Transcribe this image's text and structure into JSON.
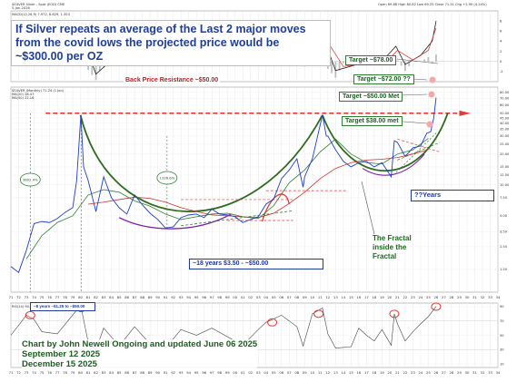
{
  "header": {
    "ticker_line": "$SILVER Silver - Spot (EOD) CME",
    "date_line": "5-Jan-2026",
    "ohlc_line": "Open 69.88 High 80.82 Low 69.25 Close 71.31 Chg +2.90 (4.24%)",
    "macd_line": "MACD(12,26,9) 7.972, 6.629, 1.353",
    "ma_line_1": "$SILVER (Monthly) 71.24 (1 Jan)",
    "ma_line_2": "MA(20) 28.47",
    "ma_line_3": "MA(50) 22.16",
    "rsi_line": "RSI(14) 90.30"
  },
  "annotations": {
    "main_title": "If Silver repeats an average of the Last 2 major moves from the covid lows the projected price would be ~$300.00 per OZ",
    "resistance": "Back Price Resistance ~$50.00",
    "target_78": "Target ~$78.00",
    "target_72": "Target ~$72.00 ??",
    "target_50": "Target ~$50.00 Met",
    "target_38": "Target $38.00 met",
    "years_q": "??Years",
    "years_18": "~18 years $3.50 - ~$50.00",
    "years_8": "~8 years ~$1.25 to ~$50.00",
    "fractal": "The Fractal inside the Fractal",
    "pct_1": "3802.4%",
    "pct_2": "1326.6%",
    "credit_1": "Chart by John Newell Ongoing and updated  June 06 2025",
    "credit_2": "September 12 2025",
    "credit_3": "December 15 2025"
  },
  "colors": {
    "price": "#1f3fc7",
    "ma_short": "#2e7d32",
    "ma_long": "#d32f2f",
    "cup": "#2f6b1f",
    "resistance": "#e53935",
    "annotation_blue": "#1e3a9a",
    "annotation_green": "#1b5e20"
  },
  "chart_data": {
    "type": "line",
    "title": "$SILVER Silver - Spot (EOD) CME",
    "y_scale": "log",
    "ylim": [
      0.9,
      90
    ],
    "xlim": [
      1971,
      2034
    ],
    "x_tick_labels": [
      "71",
      "72",
      "73",
      "74",
      "75",
      "76",
      "77",
      "78",
      "79",
      "80",
      "81",
      "82",
      "83",
      "84",
      "85",
      "86",
      "87",
      "88",
      "89",
      "90",
      "91",
      "92",
      "93",
      "94",
      "95",
      "96",
      "97",
      "98",
      "99",
      "00",
      "01",
      "02",
      "03",
      "04",
      "05",
      "06",
      "07",
      "08",
      "09",
      "10",
      "11",
      "12",
      "13",
      "14",
      "15",
      "16",
      "17",
      "18",
      "19",
      "20",
      "21",
      "22",
      "23",
      "24",
      "25",
      "26",
      "27",
      "28",
      "29",
      "30",
      "31",
      "32",
      "33",
      "34"
    ],
    "y_ticks": [
      {
        "v": 80,
        "label": "80.00"
      },
      {
        "v": 70,
        "label": "70.00"
      },
      {
        "v": 60,
        "label": "60.00"
      },
      {
        "v": 50,
        "label": "50.00"
      },
      {
        "v": 45,
        "label": "45.00"
      },
      {
        "v": 40,
        "label": "40.00"
      },
      {
        "v": 35,
        "label": "35.00"
      },
      {
        "v": 30,
        "label": "30.00"
      },
      {
        "v": 25,
        "label": "25.00"
      },
      {
        "v": 20,
        "label": "20.00"
      },
      {
        "v": 15,
        "label": "15.00"
      },
      {
        "v": 12.5,
        "label": "12.50"
      },
      {
        "v": 10,
        "label": "10.00"
      },
      {
        "v": 7.5,
        "label": "7.50"
      },
      {
        "v": 5,
        "label": "5.00"
      },
      {
        "v": 3.5,
        "label": "3.50"
      },
      {
        "v": 2.5,
        "label": "2.50"
      },
      {
        "v": 1.5,
        "label": "1.50"
      }
    ],
    "series": [
      {
        "name": "$SILVER (Monthly)",
        "points": [
          [
            1971,
            1.6
          ],
          [
            1972,
            1.4
          ],
          [
            1973,
            2.3
          ],
          [
            1974,
            4.2
          ],
          [
            1975,
            4.4
          ],
          [
            1976,
            4.3
          ],
          [
            1977,
            4.7
          ],
          [
            1978,
            5.4
          ],
          [
            1979.0,
            6.0
          ],
          [
            1979.5,
            11
          ],
          [
            1980.05,
            48
          ],
          [
            1980.4,
            15
          ],
          [
            1981,
            11
          ],
          [
            1982,
            5.5
          ],
          [
            1983,
            12
          ],
          [
            1984,
            7.5
          ],
          [
            1985,
            6.0
          ],
          [
            1986,
            5.2
          ],
          [
            1987,
            8.0
          ],
          [
            1988,
            6.4
          ],
          [
            1989,
            5.3
          ],
          [
            1990,
            4.6
          ],
          [
            1991,
            3.8
          ],
          [
            1992,
            3.9
          ],
          [
            1993,
            4.8
          ],
          [
            1994,
            5.1
          ],
          [
            1995,
            5.2
          ],
          [
            1996,
            4.8
          ],
          [
            1997,
            5.8
          ],
          [
            1998,
            5.2
          ],
          [
            1999,
            5.1
          ],
          [
            2000,
            4.9
          ],
          [
            2001,
            4.3
          ],
          [
            2002,
            4.6
          ],
          [
            2003,
            4.9
          ],
          [
            2004,
            6.5
          ],
          [
            2005,
            7.3
          ],
          [
            2006,
            11.5
          ],
          [
            2007,
            14
          ],
          [
            2008,
            18
          ],
          [
            2008.8,
            9.5
          ],
          [
            2009,
            12
          ],
          [
            2010,
            18
          ],
          [
            2011.3,
            48
          ],
          [
            2011.8,
            30
          ],
          [
            2012,
            30
          ],
          [
            2013,
            22
          ],
          [
            2014,
            17
          ],
          [
            2015,
            15
          ],
          [
            2016,
            16.5
          ],
          [
            2017,
            17
          ],
          [
            2018,
            15
          ],
          [
            2019,
            16.5
          ],
          [
            2020.2,
            12
          ],
          [
            2020.6,
            27
          ],
          [
            2021,
            26
          ],
          [
            2022,
            19
          ],
          [
            2023,
            23
          ],
          [
            2024,
            24
          ],
          [
            2024.8,
            32
          ],
          [
            2025.3,
            33
          ],
          [
            2025.7,
            45
          ],
          [
            2026.0,
            71
          ]
        ]
      },
      {
        "name": "MA(20)",
        "points": [
          [
            1973,
            1.9
          ],
          [
            1975,
            3.2
          ],
          [
            1977,
            4.3
          ],
          [
            1979,
            5.0
          ],
          [
            1981,
            8
          ],
          [
            1983,
            9
          ],
          [
            1985,
            8.5
          ],
          [
            1987,
            7
          ],
          [
            1989,
            6.2
          ],
          [
            1991,
            5.2
          ],
          [
            1993,
            4.6
          ],
          [
            1995,
            4.9
          ],
          [
            1997,
            5.2
          ],
          [
            1999,
            5.3
          ],
          [
            2001,
            4.9
          ],
          [
            2003,
            4.7
          ],
          [
            2005,
            6.3
          ],
          [
            2007,
            10.5
          ],
          [
            2009,
            14
          ],
          [
            2011,
            21
          ],
          [
            2013,
            28
          ],
          [
            2015,
            20
          ],
          [
            2017,
            16.5
          ],
          [
            2019,
            16
          ],
          [
            2021,
            20
          ],
          [
            2023,
            22
          ],
          [
            2025,
            28.47
          ]
        ]
      },
      {
        "name": "MA(50)",
        "points": [
          [
            1981,
            6.5
          ],
          [
            1983,
            6.8
          ],
          [
            1985,
            7.2
          ],
          [
            1987,
            7.6
          ],
          [
            1989,
            7.4
          ],
          [
            1991,
            6.8
          ],
          [
            1993,
            6.0
          ],
          [
            1995,
            5.5
          ],
          [
            1997,
            5.1
          ],
          [
            1999,
            5.0
          ],
          [
            2001,
            4.9
          ],
          [
            2003,
            4.8
          ],
          [
            2005,
            5.3
          ],
          [
            2007,
            6.6
          ],
          [
            2009,
            8.5
          ],
          [
            2011,
            11.5
          ],
          [
            2013,
            14.5
          ],
          [
            2015,
            16.5
          ],
          [
            2017,
            17.5
          ],
          [
            2019,
            17.8
          ],
          [
            2021,
            18.5
          ],
          [
            2023,
            20
          ],
          [
            2025,
            22.16
          ]
        ]
      }
    ],
    "macd": {
      "name": "MACD(12,26,9)",
      "macd_line": [
        [
          1971,
          0
        ],
        [
          1974,
          0.6
        ],
        [
          1976,
          0.2
        ],
        [
          1978,
          0.5
        ],
        [
          1980,
          6.0
        ],
        [
          1982,
          -2.5
        ],
        [
          1984,
          0.2
        ],
        [
          1987,
          0.2
        ],
        [
          1990,
          -0.3
        ],
        [
          1994,
          0
        ],
        [
          1998,
          0
        ],
        [
          2002,
          -0.1
        ],
        [
          2006,
          1.2
        ],
        [
          2008,
          1.5
        ],
        [
          2009,
          -0.6
        ],
        [
          2011,
          6.5
        ],
        [
          2013,
          -1.8
        ],
        [
          2016,
          -0.5
        ],
        [
          2019,
          0
        ],
        [
          2020.8,
          3
        ],
        [
          2022,
          -0.6
        ],
        [
          2024,
          1.2
        ],
        [
          2025.5,
          4
        ],
        [
          2026,
          8
        ]
      ],
      "signal_line": [
        [
          1971,
          0
        ],
        [
          1975,
          0.4
        ],
        [
          1978,
          0.3
        ],
        [
          1980.5,
          4.5
        ],
        [
          1983,
          -1.0
        ],
        [
          1986,
          0.1
        ],
        [
          1990,
          -0.2
        ],
        [
          1994,
          0
        ],
        [
          1998,
          0
        ],
        [
          2002,
          -0.1
        ],
        [
          2006,
          0.8
        ],
        [
          2009,
          0.4
        ],
        [
          2011.5,
          5.0
        ],
        [
          2014,
          -1
        ],
        [
          2017,
          -0.4
        ],
        [
          2020,
          0.6
        ],
        [
          2021,
          2.2
        ],
        [
          2023,
          0.3
        ],
        [
          2025,
          2.2
        ],
        [
          2026,
          6.6
        ]
      ],
      "ylim": [
        -4,
        10
      ]
    },
    "rsi": {
      "name": "RSI(14)",
      "ticks": [
        90,
        70,
        50,
        30,
        10
      ],
      "points": [
        [
          1971,
          50
        ],
        [
          1973,
          78
        ],
        [
          1974,
          72
        ],
        [
          1975,
          55
        ],
        [
          1977,
          52
        ],
        [
          1979.5,
          85
        ],
        [
          1980.1,
          88
        ],
        [
          1981,
          40
        ],
        [
          1982,
          30
        ],
        [
          1983,
          60
        ],
        [
          1985,
          35
        ],
        [
          1987,
          62
        ],
        [
          1989,
          38
        ],
        [
          1991,
          32
        ],
        [
          1993,
          58
        ],
        [
          1995,
          50
        ],
        [
          1997,
          60
        ],
        [
          1999,
          48
        ],
        [
          2001,
          36
        ],
        [
          2003,
          58
        ],
        [
          2004,
          68
        ],
        [
          2006,
          78
        ],
        [
          2008,
          62
        ],
        [
          2008.8,
          35
        ],
        [
          2010,
          80
        ],
        [
          2011.3,
          88
        ],
        [
          2012,
          52
        ],
        [
          2013,
          32
        ],
        [
          2015,
          34
        ],
        [
          2016,
          60
        ],
        [
          2017,
          50
        ],
        [
          2018,
          42
        ],
        [
          2019,
          58
        ],
        [
          2020.2,
          36
        ],
        [
          2020.6,
          80
        ],
        [
          2021,
          66
        ],
        [
          2022,
          42
        ],
        [
          2023,
          55
        ],
        [
          2024,
          66
        ],
        [
          2025,
          76
        ],
        [
          2026,
          90.3
        ]
      ],
      "ylim": [
        5,
        95
      ]
    },
    "annotations_overlay": {
      "resistance_level": 50.0,
      "cup_1": {
        "x_start": 1980,
        "x_end": 2011.3,
        "bottom_x": 1994,
        "bottom_y": 3.5,
        "top_y": 50
      },
      "cup_2": {
        "x_start": 2011.3,
        "x_end": 2027,
        "bottom_x": 2020,
        "bottom_y": 12,
        "top_y": 50
      },
      "years_span_1": "~18 years",
      "years_span_2": "~8 years"
    }
  }
}
